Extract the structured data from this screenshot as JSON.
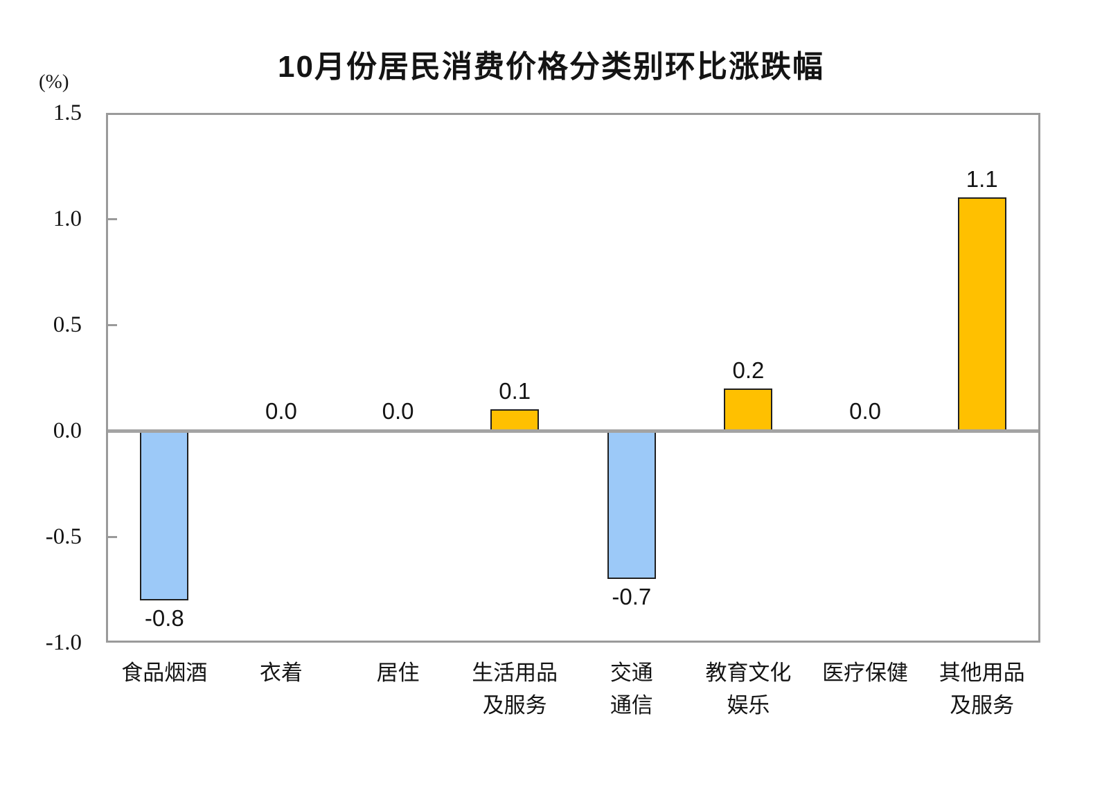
{
  "chart_data": {
    "type": "bar",
    "title": "10月份居民消费价格分类别环比涨跌幅",
    "ylabel": "(%)",
    "xlabel": "",
    "categories": [
      "食品烟酒",
      "衣着",
      "居住",
      "生活用品\n及服务",
      "交通\n通信",
      "教育文化\n娱乐",
      "医疗保健",
      "其他用品\n及服务"
    ],
    "values": [
      -0.8,
      0.0,
      0.0,
      0.1,
      -0.7,
      0.2,
      0.0,
      1.1
    ],
    "value_labels": [
      "-0.8",
      "0.0",
      "0.0",
      "0.1",
      "-0.7",
      "0.2",
      "0.0",
      "1.1"
    ],
    "ylim": [
      -1.0,
      1.5
    ],
    "yticks": [
      1.5,
      1.0,
      0.5,
      0.0,
      -0.5,
      -1.0
    ],
    "ytick_labels": [
      "1.5",
      "1.0",
      "0.5",
      "0.0",
      "-0.5",
      "-1.0"
    ],
    "grid": false,
    "legend": null,
    "colors": {
      "positive_bar": "#FFC000",
      "negative_bar": "#9CC9F8",
      "bar_border": "#1f1f1f",
      "axis_frame": "#9a9a9a",
      "zero_line": "#a3a3a3",
      "text": "#141414",
      "background": "#ffffff"
    }
  }
}
